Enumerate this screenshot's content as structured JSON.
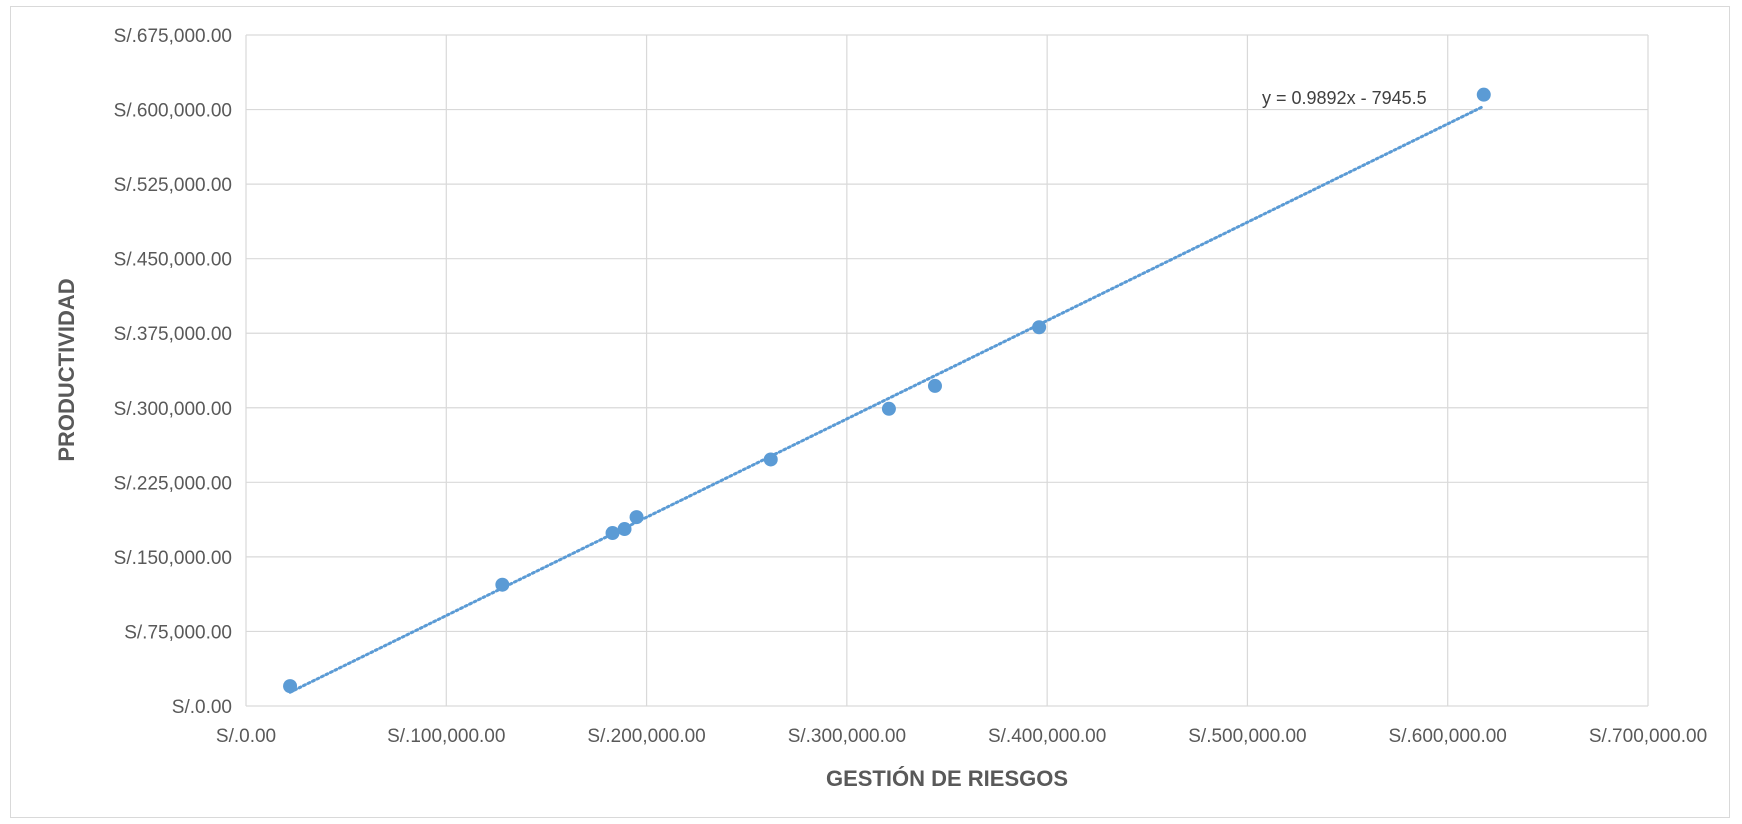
{
  "chart_data": {
    "type": "scatter",
    "xlabel": "GESTIÓN DE RIESGOS",
    "ylabel": "PRODUCTIVIDAD",
    "xlim": [
      0,
      700000
    ],
    "ylim": [
      0,
      675000
    ],
    "x_ticks": [
      0,
      100000,
      200000,
      300000,
      400000,
      500000,
      600000,
      700000
    ],
    "y_ticks": [
      0,
      75000,
      150000,
      225000,
      300000,
      375000,
      450000,
      525000,
      600000,
      675000
    ],
    "x_tick_labels": [
      "S/.0.00",
      "S/.100,000.00",
      "S/.200,000.00",
      "S/.300,000.00",
      "S/.400,000.00",
      "S/.500,000.00",
      "S/.600,000.00",
      "S/.700,000.00"
    ],
    "y_tick_labels": [
      "S/.0.00",
      "S/.75,000.00",
      "S/.150,000.00",
      "S/.225,000.00",
      "S/.300,000.00",
      "S/.375,000.00",
      "S/.450,000.00",
      "S/.525,000.00",
      "S/.600,000.00",
      "S/.675,000.00"
    ],
    "grid": true,
    "series": [
      {
        "points": [
          {
            "x": 22000,
            "y": 20000
          },
          {
            "x": 128000,
            "y": 122000
          },
          {
            "x": 183000,
            "y": 174000
          },
          {
            "x": 189000,
            "y": 178000
          },
          {
            "x": 195000,
            "y": 190000
          },
          {
            "x": 262000,
            "y": 248000
          },
          {
            "x": 321000,
            "y": 299000
          },
          {
            "x": 344000,
            "y": 322000
          },
          {
            "x": 396000,
            "y": 381000
          },
          {
            "x": 618000,
            "y": 615000
          }
        ],
        "color": "#5b9bd5"
      }
    ],
    "trendline": {
      "type": "linear",
      "slope": 0.9892,
      "intercept": -7945.5,
      "x_range": [
        22000,
        618000
      ],
      "equation_label": "y = 0.9892x - 7945.5",
      "color": "#5b9bd5",
      "style": "dotted"
    }
  }
}
